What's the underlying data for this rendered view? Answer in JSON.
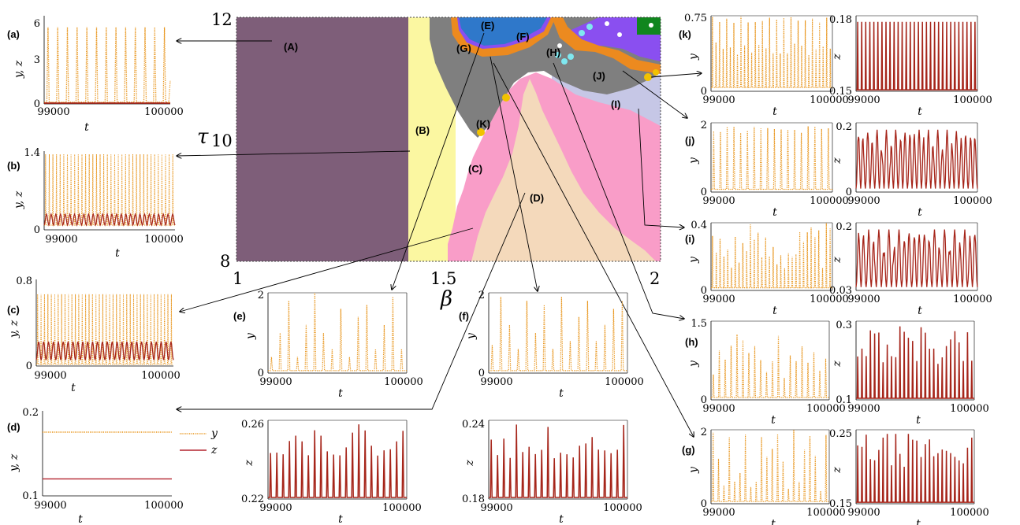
{
  "colors": {
    "A": "#7e5e79",
    "B": "#fbf7a1",
    "C": "#f99dc8",
    "D": "#f4d9bb",
    "gray": "#7f7f7f",
    "I": "#c6c7e6",
    "violet": "#8a4ff0",
    "orange": "#ec8a1f",
    "blue": "#1f7fc3",
    "cyan": "#7fe8f0",
    "gold": "#f2c200",
    "green": "#10861e",
    "y_line": "#e8951c",
    "z_line": "#a6251a",
    "z_line_d": "#b3232f"
  },
  "main_plot": {
    "x_ticks": [
      "1",
      "1.5",
      "2"
    ],
    "y_ticks": [
      "8",
      "10",
      "12"
    ],
    "x_label": "β",
    "y_label": "τ",
    "regions": [
      "(A)",
      "(B)",
      "(C)",
      "(D)",
      "(E)",
      "(F)",
      "(G)",
      "(H)",
      "(I)",
      "(J)",
      "(K)"
    ]
  },
  "chart_data": [
    {
      "panel": "(a)",
      "type": "line",
      "x_ticks": [
        "99000",
        "100000"
      ],
      "y_ticks": [
        "0",
        "3",
        "6"
      ],
      "xlabel": "t",
      "ylabel": "y, z",
      "series": [
        {
          "name": "y",
          "kind": "periodic-spikes"
        },
        {
          "name": "z",
          "kind": "flat-zero"
        }
      ]
    },
    {
      "panel": "(b)",
      "type": "line",
      "x_ticks": [
        "99000",
        "100000"
      ],
      "y_ticks": [
        "0",
        "1.4"
      ],
      "xlabel": "t",
      "ylabel": "y, z"
    },
    {
      "panel": "(c)",
      "type": "line",
      "x_ticks": [
        "99000",
        "100000"
      ],
      "y_ticks": [
        "0",
        "0.8"
      ],
      "xlabel": "t",
      "ylabel": "y, z"
    },
    {
      "panel": "(d)",
      "type": "line",
      "x_ticks": [
        "99000",
        "100000"
      ],
      "y_ticks": [
        "0.1",
        "0.2"
      ],
      "xlabel": "t",
      "ylabel": "y, z",
      "legend": [
        "y",
        "z"
      ],
      "y_value": 0.175,
      "z_value": 0.12
    },
    {
      "panel": "(e)",
      "type": "line",
      "x_ticks": [
        "99000",
        "100000"
      ],
      "y_ticks": [
        "0",
        "2"
      ],
      "z_ticks": [
        "0.22",
        "0.26"
      ],
      "xlabel": "t",
      "ylabel": "y",
      "zlabel": "z"
    },
    {
      "panel": "(f)",
      "type": "line",
      "x_ticks": [
        "99000",
        "100000"
      ],
      "y_ticks": [
        "0",
        "2"
      ],
      "z_ticks": [
        "0.18",
        "0.24"
      ],
      "xlabel": "t",
      "ylabel": "y",
      "zlabel": "z"
    },
    {
      "panel": "(k)",
      "type": "line",
      "x_ticks": [
        "99000",
        "100000"
      ],
      "y_ticks": [
        "0",
        "0.75"
      ],
      "z_ticks": [
        "0.15",
        "0.18"
      ],
      "xlabel": "t",
      "ylabel": "y",
      "zlabel": "z"
    },
    {
      "panel": "(j)",
      "type": "line",
      "x_ticks": [
        "99000",
        "100000"
      ],
      "y_ticks": [
        "0",
        "2"
      ],
      "z_ticks": [
        "0",
        "0.2"
      ],
      "xlabel": "t",
      "ylabel": "y",
      "zlabel": "z"
    },
    {
      "panel": "(i)",
      "type": "line",
      "x_ticks": [
        "99000",
        "100000"
      ],
      "y_ticks": [
        "0",
        "0.4"
      ],
      "z_ticks": [
        "0.03",
        "0.2"
      ],
      "xlabel": "t",
      "ylabel": "y",
      "zlabel": "z"
    },
    {
      "panel": "(h)",
      "type": "line",
      "x_ticks": [
        "99000",
        "100000"
      ],
      "y_ticks": [
        "0",
        "1.5"
      ],
      "z_ticks": [
        "0.1",
        "0.3"
      ],
      "xlabel": "t",
      "ylabel": "y",
      "zlabel": "z"
    },
    {
      "panel": "(g)",
      "type": "line",
      "x_ticks": [
        "99000",
        "100000"
      ],
      "y_ticks": [
        "0",
        "2"
      ],
      "z_ticks": [
        "0.15",
        "0.25"
      ],
      "xlabel": "t",
      "ylabel": "y",
      "zlabel": "z"
    }
  ]
}
